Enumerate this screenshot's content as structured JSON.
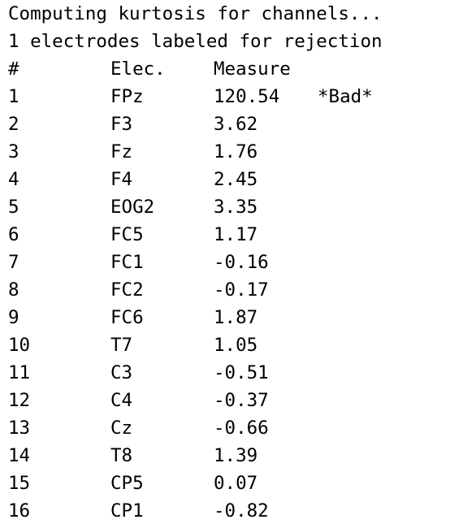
{
  "console": {
    "line1": "Computing kurtosis for channels...",
    "line2": "1 electrodes labeled for rejection",
    "headers": {
      "num": "#",
      "elec": "Elec.",
      "measure": "Measure"
    },
    "rows": [
      {
        "num": "1",
        "elec": "FPz",
        "measure": "120.54",
        "flag": "*Bad*"
      },
      {
        "num": "2",
        "elec": "F3",
        "measure": "3.62",
        "flag": ""
      },
      {
        "num": "3",
        "elec": "Fz",
        "measure": "1.76",
        "flag": ""
      },
      {
        "num": "4",
        "elec": "F4",
        "measure": "2.45",
        "flag": ""
      },
      {
        "num": "5",
        "elec": "EOG2",
        "measure": "3.35",
        "flag": ""
      },
      {
        "num": "6",
        "elec": "FC5",
        "measure": "1.17",
        "flag": ""
      },
      {
        "num": "7",
        "elec": "FC1",
        "measure": "-0.16",
        "flag": ""
      },
      {
        "num": "8",
        "elec": "FC2",
        "measure": "-0.17",
        "flag": ""
      },
      {
        "num": "9",
        "elec": "FC6",
        "measure": "1.87",
        "flag": ""
      },
      {
        "num": "10",
        "elec": "T7",
        "measure": "1.05",
        "flag": ""
      },
      {
        "num": "11",
        "elec": "C3",
        "measure": "-0.51",
        "flag": ""
      },
      {
        "num": "12",
        "elec": "C4",
        "measure": "-0.37",
        "flag": ""
      },
      {
        "num": "13",
        "elec": "Cz",
        "measure": "-0.66",
        "flag": ""
      },
      {
        "num": "14",
        "elec": "T8",
        "measure": "1.39",
        "flag": ""
      },
      {
        "num": "15",
        "elec": "CP5",
        "measure": "0.07",
        "flag": ""
      },
      {
        "num": "16",
        "elec": "CP1",
        "measure": "-0.82",
        "flag": ""
      }
    ]
  }
}
